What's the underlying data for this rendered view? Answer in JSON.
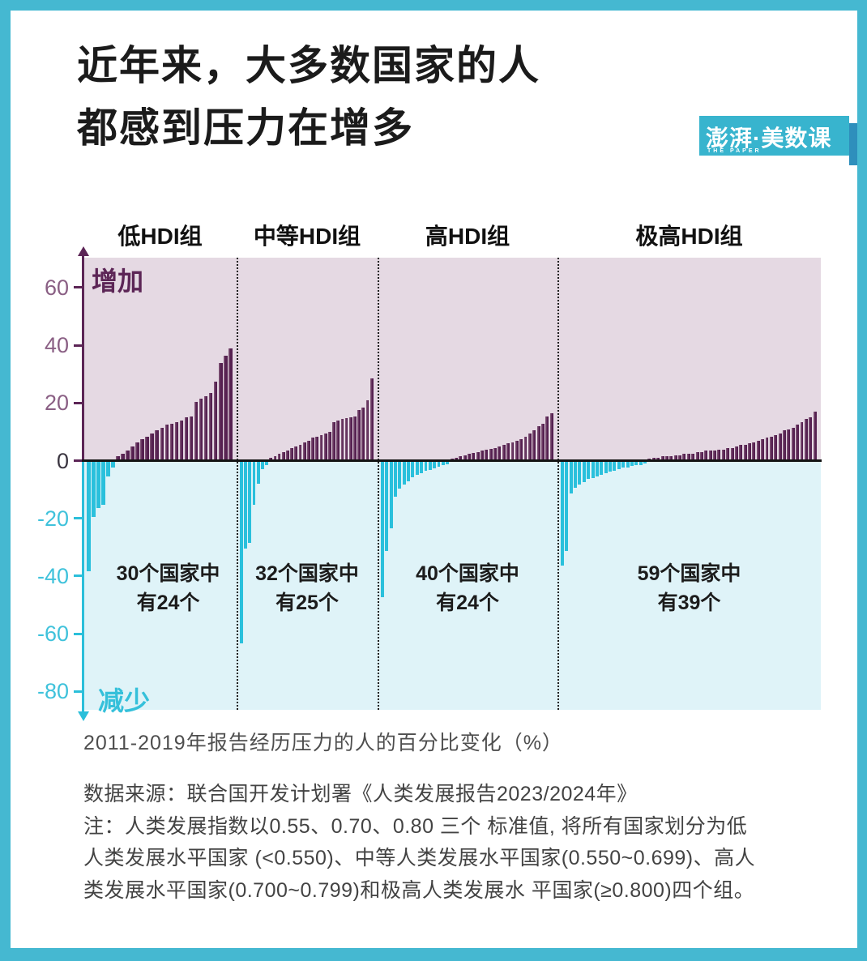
{
  "frame": {
    "border_color": "#45B8D1"
  },
  "title": {
    "line1": "近年来，大多数国家的人",
    "line2": "都感到压力在增多"
  },
  "logo": {
    "text": "澎湃·美数课",
    "subtext": "THE PAPER",
    "bg": "#38B4CE",
    "accent": "#2E8FBC"
  },
  "chart_data": {
    "type": "bar",
    "title": "近年来，大多数国家的人都感到压力在增多",
    "xlabel": "2011-2019年报告经历压力的人的百分比变化（%）",
    "ylabel": "",
    "increase_label": "增加",
    "decrease_label": "减少",
    "y_ticks": [
      60,
      40,
      20,
      0,
      -20,
      -40,
      -60,
      -80
    ],
    "ylim": [
      -86,
      70
    ],
    "grid": false,
    "legend": "none",
    "groups": [
      {
        "label": "低HDI组",
        "annotation_line1": "30个国家中",
        "annotation_line2": "有24个",
        "country_count": 30,
        "increase_count": 24,
        "values": [
          -38,
          -19,
          -16,
          -15,
          -5,
          -2,
          1,
          2,
          3,
          4.5,
          6,
          7,
          8,
          9,
          10,
          11,
          12,
          12.5,
          13,
          13.5,
          14.5,
          15,
          20,
          21,
          22,
          23,
          27,
          33.5,
          36,
          38.5
        ]
      },
      {
        "label": "中等HDI组",
        "annotation_line1": "32个国家中",
        "annotation_line2": "有25个",
        "country_count": 32,
        "increase_count": 25,
        "values": [
          -63,
          -30,
          -28,
          -15,
          -7.5,
          -2.5,
          -1,
          0.5,
          1,
          2,
          2.5,
          3,
          4,
          4.5,
          5,
          6,
          6.5,
          7.5,
          8,
          8.5,
          9,
          9.5,
          13,
          13.5,
          14,
          14.3,
          14.6,
          15,
          17,
          18,
          20.5,
          28
        ]
      },
      {
        "label": "高HDI组",
        "annotation_line1": "40个国家中",
        "annotation_line2": "有24个",
        "country_count": 40,
        "increase_count": 24,
        "values": [
          -47,
          -31,
          -23,
          -12,
          -9.2,
          -7.8,
          -6.8,
          -5.4,
          -4.5,
          -4,
          -3.1,
          -2.7,
          -2.2,
          -1.7,
          -1.2,
          -0.8,
          0.3,
          0.6,
          1,
          1.5,
          2,
          2.3,
          2.6,
          3,
          3.3,
          3.6,
          4,
          4.5,
          5,
          5.5,
          6,
          6.5,
          7,
          8,
          9,
          10,
          11.5,
          12.5,
          15,
          16
        ]
      },
      {
        "label": "极高HDI组",
        "annotation_line1": "59个国家中",
        "annotation_line2": "有39个",
        "country_count": 59,
        "increase_count": 39,
        "values": [
          -36,
          -31,
          -11,
          -9,
          -8,
          -7,
          -6,
          -5.5,
          -5,
          -4.5,
          -4,
          -3.5,
          -3,
          -2.5,
          -2,
          -2,
          -1.5,
          -1,
          -1,
          -0.5,
          0.3,
          0.5,
          0.5,
          1,
          1,
          1,
          1.5,
          1.5,
          2,
          2,
          2,
          2.5,
          2.5,
          3,
          3,
          3,
          3.5,
          3.5,
          4,
          4,
          4.5,
          5,
          5,
          5.5,
          6,
          6.5,
          7,
          7.5,
          8,
          8.5,
          9,
          10,
          10.5,
          11,
          12,
          13,
          14,
          14.5,
          16.5
        ]
      }
    ],
    "colors": {
      "bar_positive": "#552050",
      "bar_positive_edge": "#7D5174",
      "bar_negative": "#2AC0DC",
      "bg_positive": "#E5D9E3",
      "bg_negative": "#DFF3F8",
      "axis_positive": "#5C2556",
      "axis_negative": "#2BBFDA",
      "tick_positive": "#8A5F84",
      "tick_negative": "#3FC2DB",
      "tick_zero": "#3A3540",
      "zero_line": "#141414"
    }
  },
  "footer": {
    "source": "数据来源：联合国开发计划署《人类发展报告2023/2024年》",
    "note_lines": [
      "注：人类发展指数以0.55、0.70、0.80 三个 标准值, 将所有国家划分为低",
      "人类发展水平国家 (<0.550)、中等人类发展水平国家(0.550~0.699)、高人",
      "类发展水平国家(0.700~0.799)和极高人类发展水 平国家(≥0.800)四个组。"
    ]
  }
}
